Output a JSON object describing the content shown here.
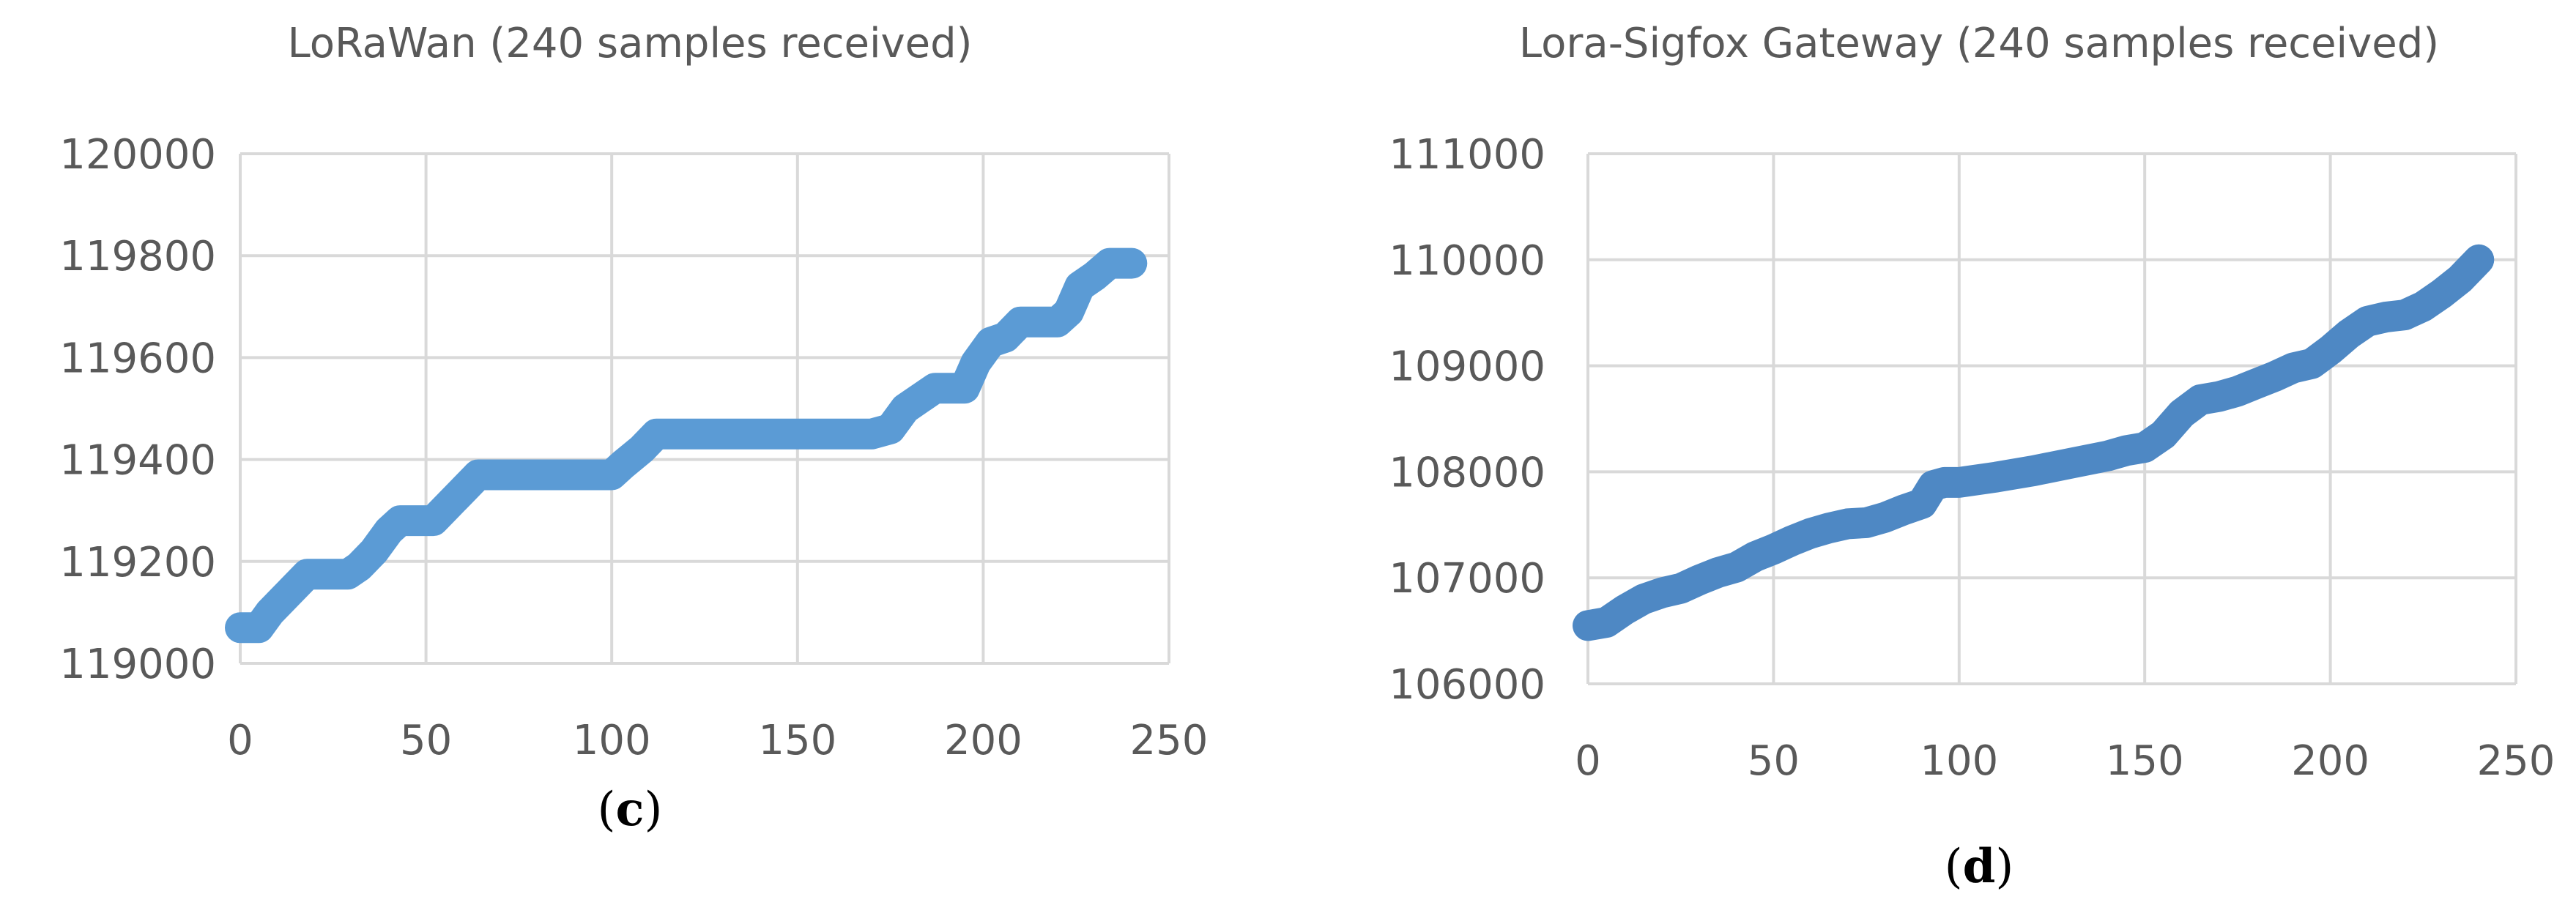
{
  "chart_data": [
    {
      "type": "line",
      "title": "LoRaWan (240 samples received)",
      "panel_label": {
        "open": "(",
        "letter": "c",
        "close": ")"
      },
      "xlabel": "",
      "ylabel": "",
      "xlim": [
        0,
        250
      ],
      "ylim": [
        119000,
        120000
      ],
      "x_ticks": [
        0,
        50,
        100,
        150,
        200,
        250
      ],
      "y_ticks": [
        119000,
        119200,
        119400,
        119600,
        119800,
        120000
      ],
      "grid": true,
      "color": "#5b9bd5",
      "series": [
        {
          "x": [
            0,
            5,
            8,
            12,
            18,
            29,
            32,
            36,
            40,
            43,
            50,
            52,
            56,
            60,
            64,
            100,
            103,
            108,
            112,
            170,
            175,
            179,
            183,
            187,
            195,
            198,
            202,
            206,
            210,
            220,
            223,
            226,
            230,
            234,
            240
          ],
          "y": [
            119070,
            119070,
            119100,
            119130,
            119175,
            119175,
            119190,
            119220,
            119260,
            119280,
            119280,
            119280,
            119310,
            119340,
            119370,
            119370,
            119390,
            119420,
            119450,
            119450,
            119460,
            119500,
            119520,
            119540,
            119540,
            119590,
            119630,
            119640,
            119670,
            119670,
            119690,
            119740,
            119760,
            119785,
            119785
          ]
        }
      ]
    },
    {
      "type": "line",
      "title": "Lora-Sigfox Gateway (240 samples received)",
      "panel_label": {
        "open": "(",
        "letter": "d",
        "close": ")"
      },
      "xlabel": "",
      "ylabel": "",
      "xlim": [
        0,
        250
      ],
      "ylim": [
        106000,
        111000
      ],
      "x_ticks": [
        0,
        50,
        100,
        150,
        200,
        250
      ],
      "y_ticks": [
        106000,
        107000,
        108000,
        109000,
        110000,
        111000
      ],
      "grid": true,
      "color": "#4e88c4",
      "series": [
        {
          "x": [
            0,
            5,
            10,
            15,
            20,
            25,
            30,
            35,
            40,
            45,
            50,
            55,
            60,
            65,
            70,
            75,
            80,
            85,
            90,
            93,
            96,
            100,
            110,
            120,
            130,
            140,
            145,
            150,
            155,
            160,
            165,
            170,
            175,
            180,
            185,
            190,
            195,
            200,
            205,
            210,
            215,
            220,
            225,
            230,
            235,
            240
          ],
          "y": [
            106550,
            106580,
            106700,
            106800,
            106860,
            106900,
            106980,
            107050,
            107100,
            107200,
            107270,
            107350,
            107420,
            107470,
            107510,
            107520,
            107570,
            107640,
            107700,
            107870,
            107900,
            107900,
            107950,
            108010,
            108080,
            108150,
            108200,
            108230,
            108350,
            108550,
            108680,
            108710,
            108760,
            108830,
            108900,
            108980,
            109020,
            109150,
            109300,
            109420,
            109460,
            109480,
            109560,
            109680,
            109820,
            110000
          ]
        }
      ]
    }
  ]
}
